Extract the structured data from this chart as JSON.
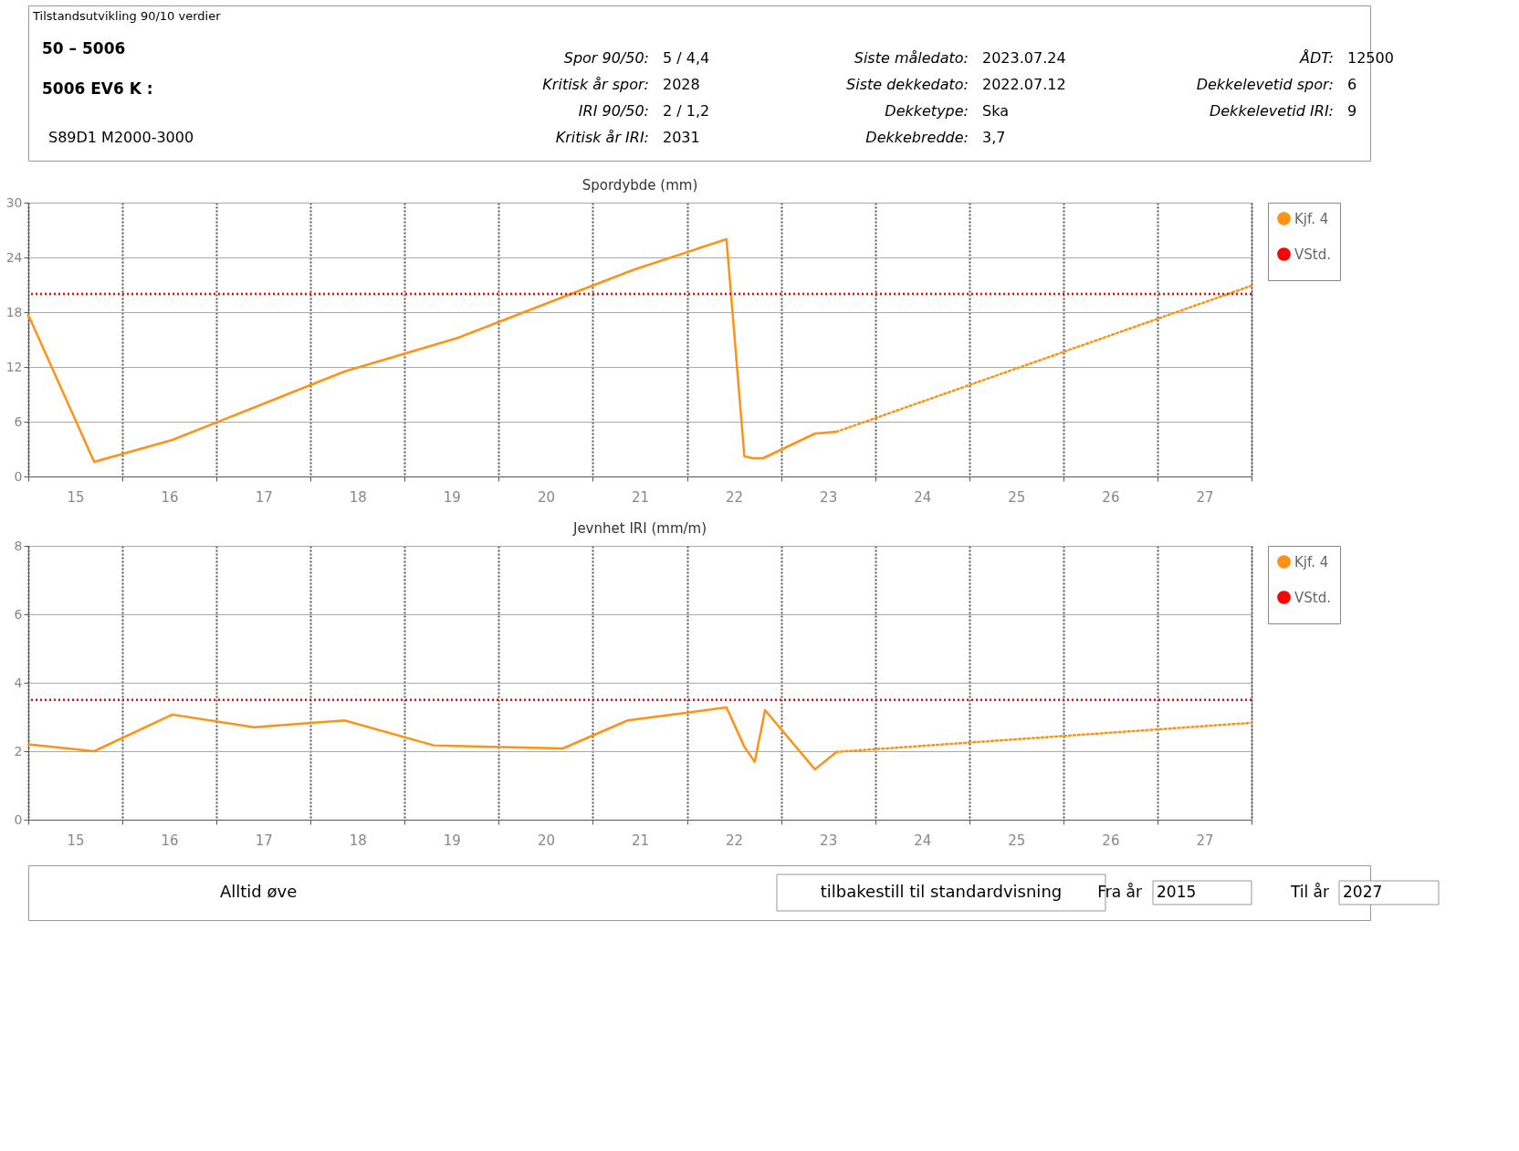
{
  "chart_data": [
    {
      "type": "other",
      "title": "Tilstandsutvikling 90/10 verdier",
      "annotations": [
        "50 – 5006",
        "5006 EV6 K :",
        "S89D1 M2000-3000",
        "Spor 90/50:",
        "5 / 4,4",
        "Kritisk år spor:",
        "2028",
        "IRI 90/50:",
        "2 / 1,2",
        "Kritisk år IRI:",
        "2031",
        "Siste måledato:",
        "2023.07.24",
        "Siste dekkedato:",
        "2022.07.12",
        "Dekketype:",
        "Ska",
        "Dekkebredde:",
        "3,7",
        "ÅDT:",
        "12500",
        "Dekkelevetid spor:",
        "6",
        "Dekkelevetid IRI:",
        "9"
      ]
    },
    {
      "type": "line",
      "title": "Spordybde (mm)",
      "xlim": [
        14.5,
        27.5
      ],
      "xticks": [
        {
          "value": 14.5,
          "label": null
        },
        15,
        {
          "value": 15.5,
          "label": null
        },
        16,
        {
          "value": 16.5,
          "label": null
        },
        17,
        {
          "value": 17.5,
          "label": null
        },
        18,
        {
          "value": 18.5,
          "label": null
        },
        19,
        {
          "value": 19.5,
          "label": null
        },
        20,
        {
          "value": 20.5,
          "label": null
        },
        21,
        {
          "value": 21.5,
          "label": null
        },
        22,
        {
          "value": 22.5,
          "label": null
        },
        23,
        {
          "value": 23.5,
          "label": null
        },
        24,
        {
          "value": 24.5,
          "label": null
        },
        25,
        {
          "value": 25.5,
          "label": null
        },
        26,
        {
          "value": 26.5,
          "label": null
        },
        27,
        {
          "value": 27.5,
          "label": null
        }
      ],
      "ylim": [
        0,
        30
      ],
      "yticks": [
        0,
        6,
        12,
        18,
        24,
        30
      ],
      "grid": true,
      "legend": "right",
      "marker": "none",
      "series": [
        {
          "name": "Kjf. 4",
          "color": "#ff9214",
          "line_style": "solid",
          "x": [
            14.5,
            15.2,
            16.03,
            17.86,
            19.07,
            20.92,
            21.92,
            22.11,
            22.2,
            22.31,
            22.86,
            23.09
          ],
          "values": [
            17.7,
            1.6,
            4.0,
            11.5,
            15.2,
            22.6,
            26.0,
            2.2,
            2.0,
            2.0,
            4.7,
            4.9
          ]
        },
        {
          "color": "#ff9214",
          "line_style": "dotted",
          "x": [
            23.09,
            27.5
          ],
          "values": [
            4.9,
            20.9
          ]
        }
      ],
      "ref_lines": [
        {
          "axis": "y",
          "value": 20,
          "label": "VStd.",
          "color": "#ff0000",
          "line_style": "dotted"
        }
      ]
    },
    {
      "type": "line",
      "title": "Jevnhet IRI (mm/m)",
      "xlim": [
        14.5,
        27.5
      ],
      "xticks": [
        {
          "value": 14.5,
          "label": null
        },
        15,
        {
          "value": 15.5,
          "label": null
        },
        16,
        {
          "value": 16.5,
          "label": null
        },
        17,
        {
          "value": 17.5,
          "label": null
        },
        18,
        {
          "value": 18.5,
          "label": null
        },
        19,
        {
          "value": 19.5,
          "label": null
        },
        20,
        {
          "value": 20.5,
          "label": null
        },
        21,
        {
          "value": 21.5,
          "label": null
        },
        22,
        {
          "value": 22.5,
          "label": null
        },
        23,
        {
          "value": 23.5,
          "label": null
        },
        24,
        {
          "value": 24.5,
          "label": null
        },
        25,
        {
          "value": 25.5,
          "label": null
        },
        26,
        {
          "value": 26.5,
          "label": null
        },
        27,
        {
          "value": 27.5,
          "label": null
        }
      ],
      "ylim": [
        0,
        8
      ],
      "yticks": [
        0,
        2,
        4,
        6,
        8
      ],
      "grid": true,
      "legend": "right",
      "marker": "none",
      "series": [
        {
          "name": "Kjf. 4",
          "color": "#ff9214",
          "line_style": "solid",
          "x": [
            14.5,
            15.2,
            16.03,
            16.9,
            17.86,
            18.81,
            20.18,
            20.87,
            21.92,
            22.11,
            22.22,
            22.33,
            22.86,
            23.09
          ],
          "values": [
            2.2,
            2.0,
            3.07,
            2.7,
            2.9,
            2.17,
            2.08,
            2.9,
            3.28,
            2.13,
            1.69,
            3.2,
            1.47,
            1.98
          ]
        },
        {
          "color": "#ff9214",
          "line_style": "dotted",
          "x": [
            23.09,
            27.5
          ],
          "values": [
            1.98,
            2.83
          ]
        }
      ],
      "ref_lines": [
        {
          "axis": "y",
          "value": 3.5,
          "label": "VStd.",
          "color": "#ff0000",
          "line_style": "dotted"
        }
      ]
    },
    {
      "type": "other",
      "annotations": [
        "Alltid øve",
        "tilbakestill til standardvisning",
        "Fra år",
        "2015",
        "Til år",
        "2027"
      ]
    }
  ]
}
